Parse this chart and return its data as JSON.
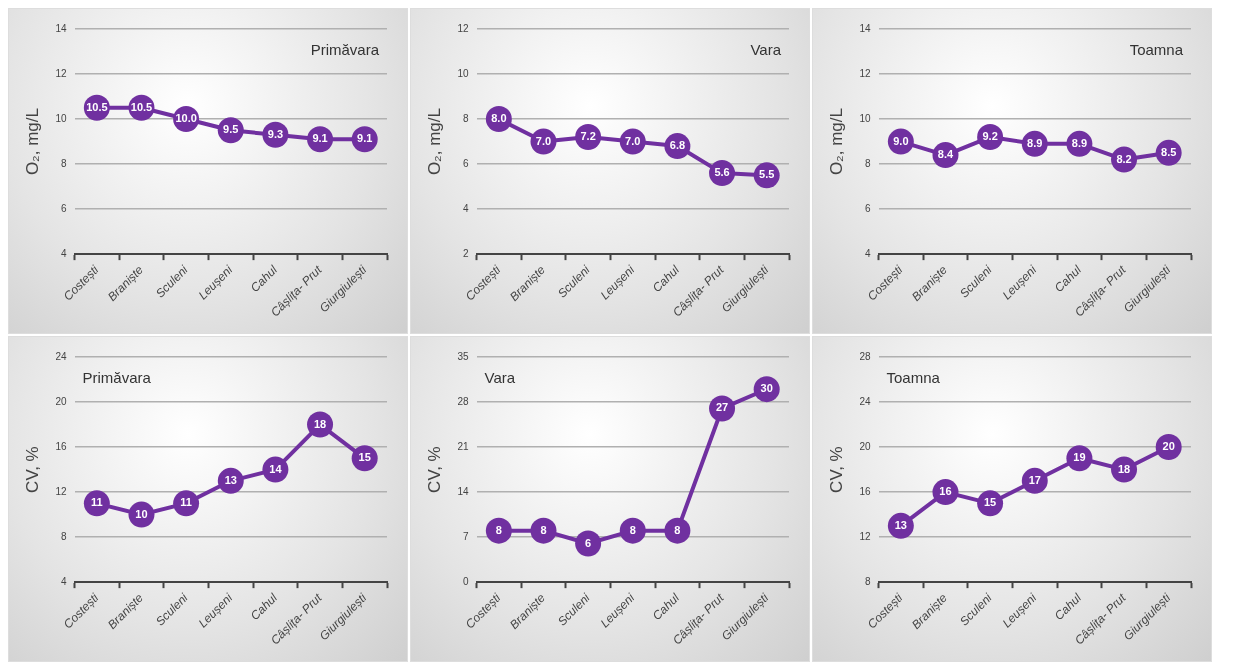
{
  "chart_data": [
    {
      "type": "line",
      "title": "Primăvara",
      "ylabel": "O₂, mg/L",
      "categories": [
        "Costești",
        "Braniște",
        "Sculeni",
        "Leușeni",
        "Cahul",
        "Câșlița- Prut",
        "Giurgiulești"
      ],
      "series": [
        {
          "color": "#7030a0",
          "values": [
            10.5,
            10.5,
            10.0,
            9.5,
            9.3,
            9.1,
            9.1
          ],
          "value_labels": [
            "10.5",
            "10.5",
            "10.0",
            "9.5",
            "9.3",
            "9.1",
            "9.1"
          ]
        }
      ],
      "ylim": [
        4,
        14
      ],
      "yticks": [
        4,
        6,
        8,
        10,
        12,
        14
      ],
      "grid": "y",
      "marker": "circle"
    },
    {
      "type": "line",
      "title": "Vara",
      "ylabel": "O₂, mg/L",
      "categories": [
        "Costești",
        "Braniște",
        "Sculeni",
        "Leușeni",
        "Cahul",
        "Câșlița- Prut",
        "Giurgiulești"
      ],
      "series": [
        {
          "color": "#7030a0",
          "values": [
            8.0,
            7.0,
            7.2,
            7.0,
            6.8,
            5.6,
            5.5
          ],
          "value_labels": [
            "8.0",
            "7.0",
            "7.2",
            "7.0",
            "6.8",
            "5.6",
            "5.5"
          ]
        }
      ],
      "ylim": [
        2,
        12
      ],
      "yticks": [
        2,
        4,
        6,
        8,
        10,
        12
      ],
      "grid": "y",
      "marker": "circle"
    },
    {
      "type": "line",
      "title": "Toamna",
      "ylabel": "O₂, mg/L",
      "categories": [
        "Costești",
        "Braniște",
        "Sculeni",
        "Leușeni",
        "Cahul",
        "Câșlița- Prut",
        "Giurgiulești"
      ],
      "series": [
        {
          "color": "#7030a0",
          "values": [
            9.0,
            8.4,
            9.2,
            8.9,
            8.9,
            8.2,
            8.5
          ],
          "value_labels": [
            "9.0",
            "8.4",
            "9.2",
            "8.9",
            "8.9",
            "8.2",
            "8.5"
          ]
        }
      ],
      "ylim": [
        4,
        14
      ],
      "yticks": [
        4,
        6,
        8,
        10,
        12,
        14
      ],
      "grid": "y",
      "marker": "circle"
    },
    {
      "type": "line",
      "title": "Primăvara",
      "ylabel": "CV, %",
      "categories": [
        "Costești",
        "Braniște",
        "Sculeni",
        "Leușeni",
        "Cahul",
        "Câșlița- Prut",
        "Giurgiulești"
      ],
      "series": [
        {
          "color": "#7030a0",
          "values": [
            11,
            10,
            11,
            13,
            14,
            18,
            15
          ]
        }
      ],
      "ylim": [
        4,
        24
      ],
      "yticks": [
        4,
        8,
        12,
        16,
        20,
        24
      ],
      "grid": "y",
      "marker": "circle",
      "data_labels": true
    },
    {
      "type": "line",
      "title": "Vara",
      "ylabel": "CV, %",
      "categories": [
        "Costești",
        "Braniște",
        "Sculeni",
        "Leușeni",
        "Cahul",
        "Câșlița- Prut",
        "Giurgiulești"
      ],
      "series": [
        {
          "color": "#7030a0",
          "values": [
            8,
            8,
            6,
            8,
            8,
            27,
            30
          ]
        }
      ],
      "ylim": [
        0,
        35
      ],
      "yticks": [
        0,
        7,
        14,
        21,
        28,
        35
      ],
      "grid": "y",
      "marker": "circle",
      "data_labels": true
    },
    {
      "type": "line",
      "title": "Toamna",
      "ylabel": "CV, %",
      "categories": [
        "Costești",
        "Braniște",
        "Sculeni",
        "Leușeni",
        "Cahul",
        "Câșlița- Prut",
        "Giurgiulești"
      ],
      "series": [
        {
          "color": "#7030a0",
          "values": [
            13,
            16,
            15,
            17,
            19,
            18,
            20
          ]
        }
      ],
      "ylim": [
        8,
        28
      ],
      "yticks": [
        8,
        12,
        16,
        20,
        24,
        28
      ],
      "grid": "y",
      "marker": "circle",
      "data_labels": true
    }
  ]
}
